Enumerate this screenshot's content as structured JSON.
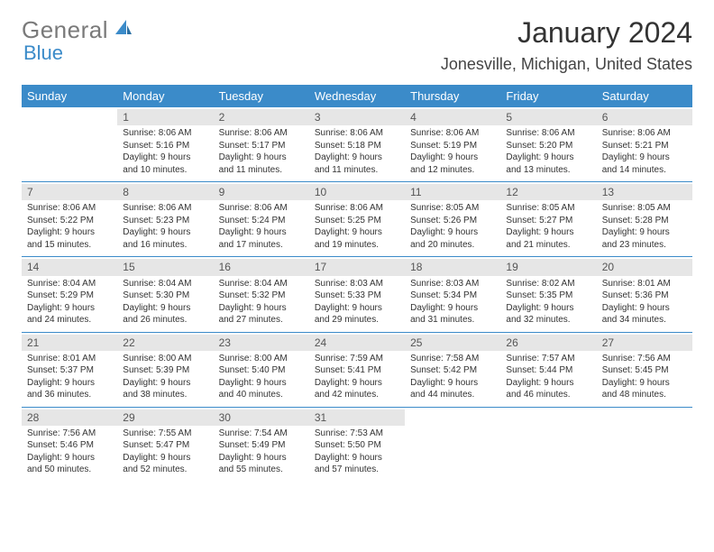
{
  "logo": {
    "word1": "General",
    "word2": "Blue"
  },
  "title": "January 2024",
  "location": "Jonesville, Michigan, United States",
  "theme": {
    "accent": "#3b8bc9",
    "band": "#e6e6e6",
    "text": "#333333"
  },
  "day_headers": [
    "Sunday",
    "Monday",
    "Tuesday",
    "Wednesday",
    "Thursday",
    "Friday",
    "Saturday"
  ],
  "first_day_offset": 1,
  "days": [
    {
      "n": 1,
      "sunrise": "8:06 AM",
      "sunset": "5:16 PM",
      "daylight": "9 hours and 10 minutes."
    },
    {
      "n": 2,
      "sunrise": "8:06 AM",
      "sunset": "5:17 PM",
      "daylight": "9 hours and 11 minutes."
    },
    {
      "n": 3,
      "sunrise": "8:06 AM",
      "sunset": "5:18 PM",
      "daylight": "9 hours and 11 minutes."
    },
    {
      "n": 4,
      "sunrise": "8:06 AM",
      "sunset": "5:19 PM",
      "daylight": "9 hours and 12 minutes."
    },
    {
      "n": 5,
      "sunrise": "8:06 AM",
      "sunset": "5:20 PM",
      "daylight": "9 hours and 13 minutes."
    },
    {
      "n": 6,
      "sunrise": "8:06 AM",
      "sunset": "5:21 PM",
      "daylight": "9 hours and 14 minutes."
    },
    {
      "n": 7,
      "sunrise": "8:06 AM",
      "sunset": "5:22 PM",
      "daylight": "9 hours and 15 minutes."
    },
    {
      "n": 8,
      "sunrise": "8:06 AM",
      "sunset": "5:23 PM",
      "daylight": "9 hours and 16 minutes."
    },
    {
      "n": 9,
      "sunrise": "8:06 AM",
      "sunset": "5:24 PM",
      "daylight": "9 hours and 17 minutes."
    },
    {
      "n": 10,
      "sunrise": "8:06 AM",
      "sunset": "5:25 PM",
      "daylight": "9 hours and 19 minutes."
    },
    {
      "n": 11,
      "sunrise": "8:05 AM",
      "sunset": "5:26 PM",
      "daylight": "9 hours and 20 minutes."
    },
    {
      "n": 12,
      "sunrise": "8:05 AM",
      "sunset": "5:27 PM",
      "daylight": "9 hours and 21 minutes."
    },
    {
      "n": 13,
      "sunrise": "8:05 AM",
      "sunset": "5:28 PM",
      "daylight": "9 hours and 23 minutes."
    },
    {
      "n": 14,
      "sunrise": "8:04 AM",
      "sunset": "5:29 PM",
      "daylight": "9 hours and 24 minutes."
    },
    {
      "n": 15,
      "sunrise": "8:04 AM",
      "sunset": "5:30 PM",
      "daylight": "9 hours and 26 minutes."
    },
    {
      "n": 16,
      "sunrise": "8:04 AM",
      "sunset": "5:32 PM",
      "daylight": "9 hours and 27 minutes."
    },
    {
      "n": 17,
      "sunrise": "8:03 AM",
      "sunset": "5:33 PM",
      "daylight": "9 hours and 29 minutes."
    },
    {
      "n": 18,
      "sunrise": "8:03 AM",
      "sunset": "5:34 PM",
      "daylight": "9 hours and 31 minutes."
    },
    {
      "n": 19,
      "sunrise": "8:02 AM",
      "sunset": "5:35 PM",
      "daylight": "9 hours and 32 minutes."
    },
    {
      "n": 20,
      "sunrise": "8:01 AM",
      "sunset": "5:36 PM",
      "daylight": "9 hours and 34 minutes."
    },
    {
      "n": 21,
      "sunrise": "8:01 AM",
      "sunset": "5:37 PM",
      "daylight": "9 hours and 36 minutes."
    },
    {
      "n": 22,
      "sunrise": "8:00 AM",
      "sunset": "5:39 PM",
      "daylight": "9 hours and 38 minutes."
    },
    {
      "n": 23,
      "sunrise": "8:00 AM",
      "sunset": "5:40 PM",
      "daylight": "9 hours and 40 minutes."
    },
    {
      "n": 24,
      "sunrise": "7:59 AM",
      "sunset": "5:41 PM",
      "daylight": "9 hours and 42 minutes."
    },
    {
      "n": 25,
      "sunrise": "7:58 AM",
      "sunset": "5:42 PM",
      "daylight": "9 hours and 44 minutes."
    },
    {
      "n": 26,
      "sunrise": "7:57 AM",
      "sunset": "5:44 PM",
      "daylight": "9 hours and 46 minutes."
    },
    {
      "n": 27,
      "sunrise": "7:56 AM",
      "sunset": "5:45 PM",
      "daylight": "9 hours and 48 minutes."
    },
    {
      "n": 28,
      "sunrise": "7:56 AM",
      "sunset": "5:46 PM",
      "daylight": "9 hours and 50 minutes."
    },
    {
      "n": 29,
      "sunrise": "7:55 AM",
      "sunset": "5:47 PM",
      "daylight": "9 hours and 52 minutes."
    },
    {
      "n": 30,
      "sunrise": "7:54 AM",
      "sunset": "5:49 PM",
      "daylight": "9 hours and 55 minutes."
    },
    {
      "n": 31,
      "sunrise": "7:53 AM",
      "sunset": "5:50 PM",
      "daylight": "9 hours and 57 minutes."
    }
  ],
  "labels": {
    "sunrise": "Sunrise:",
    "sunset": "Sunset:",
    "daylight": "Daylight:"
  }
}
